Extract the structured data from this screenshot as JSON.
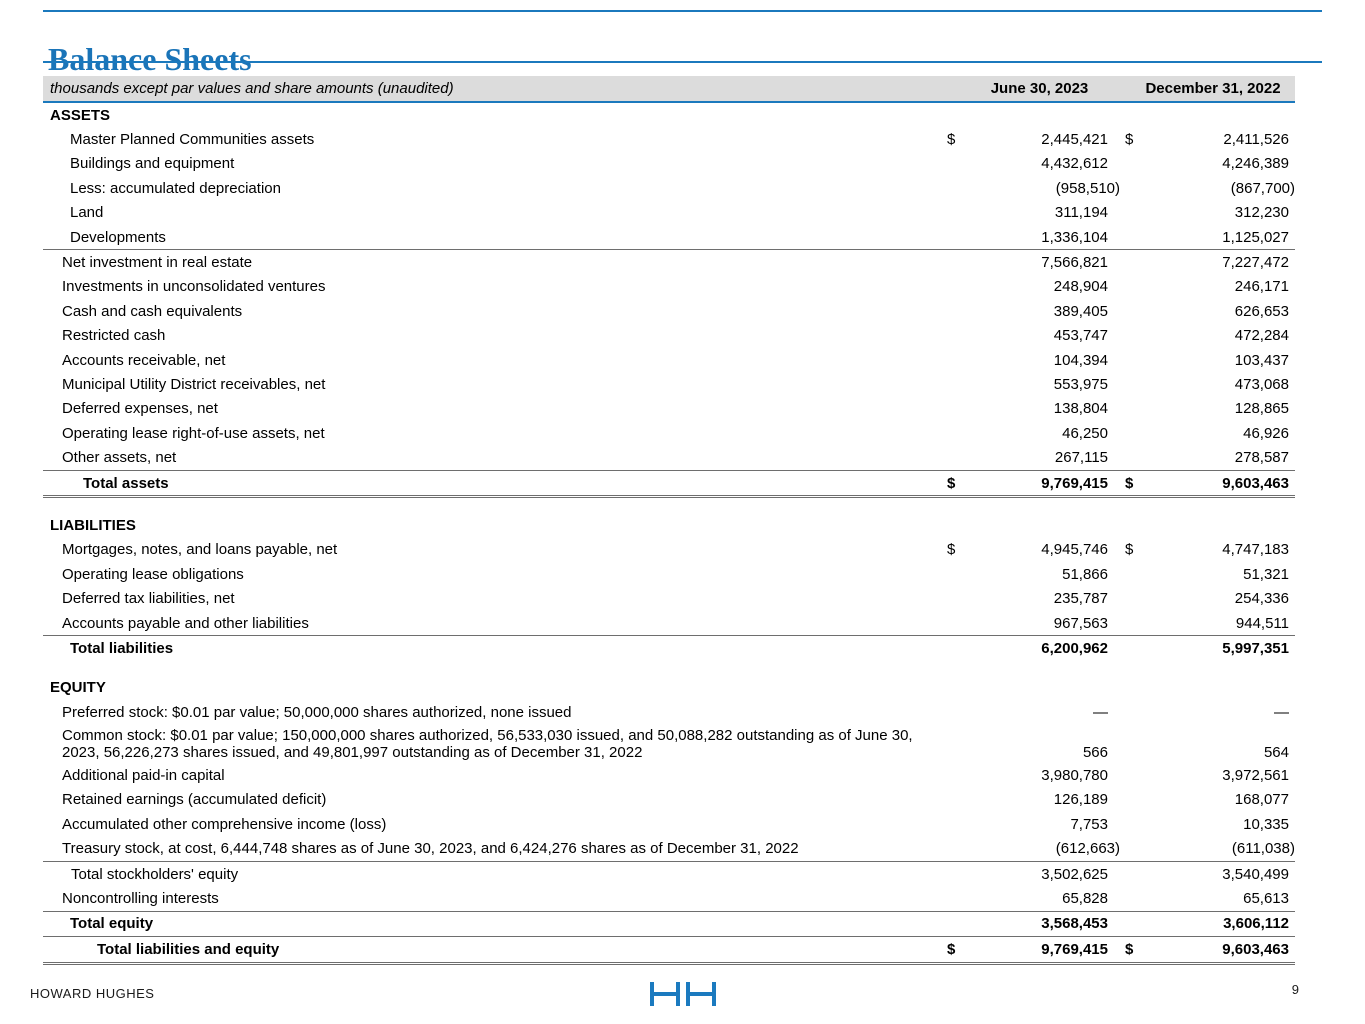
{
  "document": {
    "title": "Balance Sheets",
    "caption": "thousands except par values and share amounts (unaudited)",
    "columns": [
      "June 30, 2023",
      "December 31, 2022"
    ]
  },
  "colors": {
    "accent_blue": "#1b79bd",
    "title_blue": "#1a74b8",
    "header_band_gray": "#dcdcdc",
    "rule_gray": "#6e6e6e"
  },
  "footer": {
    "brand": "HOWARD HUGHES",
    "logo": "howard-hughes-hh-logo",
    "page_number": "9"
  },
  "table": {
    "rows": [
      {
        "label": "ASSETS",
        "level": "section"
      },
      {
        "label": "Master Planned Communities assets",
        "level": "subitem",
        "d1": "$",
        "v1": "2,445,421",
        "d2": "$",
        "v2": "2,411,526"
      },
      {
        "label": "Buildings and equipment",
        "level": "subitem",
        "v1": "4,432,612",
        "v2": "4,246,389"
      },
      {
        "label": "Less: accumulated depreciation",
        "level": "subitem",
        "v1": "(958,510)",
        "v2": "(867,700)"
      },
      {
        "label": "Land",
        "level": "subitem",
        "v1": "311,194",
        "v2": "312,230"
      },
      {
        "label": "Developments",
        "level": "subitem",
        "v1": "1,336,104",
        "v2": "1,125,027",
        "rules": [
          "bottom"
        ]
      },
      {
        "label": "Net investment in real estate",
        "level": "item",
        "v1": "7,566,821",
        "v2": "7,227,472"
      },
      {
        "label": "Investments in unconsolidated ventures",
        "level": "item",
        "v1": "248,904",
        "v2": "246,171"
      },
      {
        "label": "Cash and cash equivalents",
        "level": "item",
        "v1": "389,405",
        "v2": "626,653"
      },
      {
        "label": "Restricted cash",
        "level": "item",
        "v1": "453,747",
        "v2": "472,284"
      },
      {
        "label": "Accounts receivable, net",
        "level": "item",
        "v1": "104,394",
        "v2": "103,437"
      },
      {
        "label": "Municipal Utility District receivables, net",
        "level": "item",
        "v1": "553,975",
        "v2": "473,068"
      },
      {
        "label": "Deferred expenses, net",
        "level": "item",
        "v1": "138,804",
        "v2": "128,865"
      },
      {
        "label": "Operating lease right-of-use assets, net",
        "level": "item",
        "v1": "46,250",
        "v2": "46,926"
      },
      {
        "label": "Other assets, net",
        "level": "item",
        "v1": "267,115",
        "v2": "278,587"
      },
      {
        "label": "Total assets",
        "level": "total1",
        "d1": "$",
        "v1": "9,769,415",
        "d2": "$",
        "v2": "9,603,463",
        "rules": [
          "top",
          "dbl"
        ]
      },
      {
        "spacer": true
      },
      {
        "label": "LIABILITIES",
        "level": "section"
      },
      {
        "label": "Mortgages, notes, and loans payable, net",
        "level": "item",
        "d1": "$",
        "v1": "4,945,746",
        "d2": "$",
        "v2": "4,747,183"
      },
      {
        "label": "Operating lease obligations",
        "level": "item",
        "v1": "51,866",
        "v2": "51,321"
      },
      {
        "label": "Deferred tax liabilities, net",
        "level": "item",
        "v1": "235,787",
        "v2": "254,336"
      },
      {
        "label": "Accounts payable and other liabilities",
        "level": "item",
        "v1": "967,563",
        "v2": "944,511"
      },
      {
        "label": "Total liabilities",
        "level": "total2",
        "v1": "6,200,962",
        "v2": "5,997,351",
        "rules": [
          "top"
        ]
      },
      {
        "spacer": true
      },
      {
        "label": "EQUITY",
        "level": "section"
      },
      {
        "label": "Preferred stock: $0.01 par value; 50,000,000 shares authorized, none issued",
        "level": "item",
        "v1": "—",
        "v2": "—"
      },
      {
        "label": "Common stock: $0.01 par value; 150,000,000 shares authorized, 56,533,030 issued, and 50,088,282 outstanding as of June 30, 2023,  56,226,273 shares issued, and 49,801,997 outstanding as of December 31, 2022",
        "level": "item",
        "wrap": true,
        "v1": "566",
        "v2": "564"
      },
      {
        "label": "Additional paid-in capital",
        "level": "item",
        "v1": "3,980,780",
        "v2": "3,972,561"
      },
      {
        "label": "Retained earnings (accumulated deficit)",
        "level": "item",
        "v1": "126,189",
        "v2": "168,077"
      },
      {
        "label": "Accumulated other comprehensive income (loss)",
        "level": "item",
        "v1": "7,753",
        "v2": "10,335"
      },
      {
        "label": "Treasury stock, at cost, 6,444,748 shares as of June 30, 2023, and 6,424,276 shares as of December 31, 2022",
        "level": "item",
        "v1": "(612,663)",
        "v2": "(611,038)"
      },
      {
        "label": "Total stockholders' equity",
        "level": "subtotal",
        "v1": "3,502,625",
        "v2": "3,540,499",
        "rules": [
          "top"
        ]
      },
      {
        "label": "Noncontrolling interests",
        "level": "item",
        "v1": "65,828",
        "v2": "65,613"
      },
      {
        "label": "Total equity",
        "level": "total2",
        "v1": "3,568,453",
        "v2": "3,606,112",
        "rules": [
          "top",
          "bottom"
        ]
      },
      {
        "label": "Total liabilities and equity",
        "level": "grand",
        "d1": "$",
        "v1": "9,769,415",
        "d2": "$",
        "v2": "9,603,463",
        "rules": [
          "dbl"
        ]
      }
    ]
  }
}
